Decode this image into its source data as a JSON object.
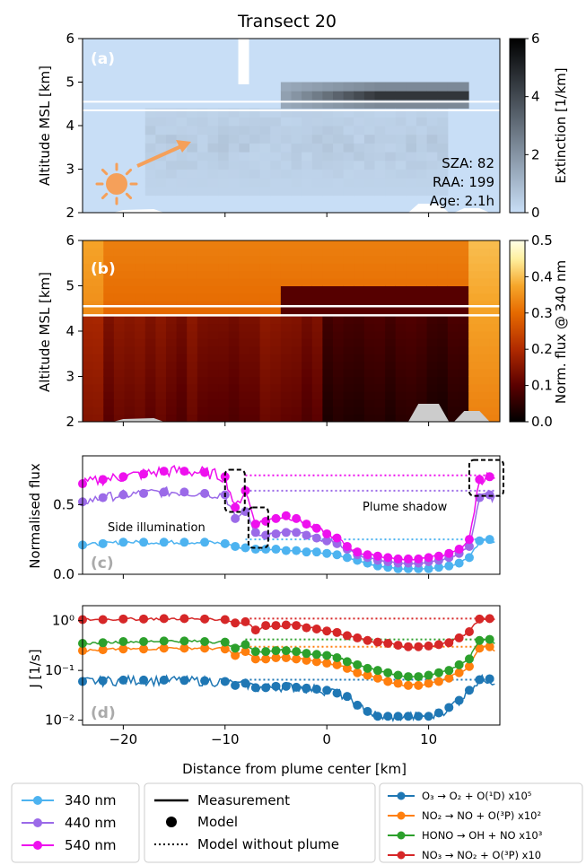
{
  "figure": {
    "title": "Transect 20",
    "xlabel": "Distance from plume center [km]",
    "xticks": [
      "−20",
      "−10",
      "0",
      "10"
    ],
    "xrange": [
      -24,
      17
    ]
  },
  "panel_a": {
    "label": "(a)",
    "ylabel": "Altitude MSL [km]",
    "yticks": [
      "2",
      "3",
      "4",
      "5",
      "6"
    ],
    "colorbar_label": "Extinction [1/km]",
    "colorbar_ticks": [
      "0",
      "2",
      "4",
      "6"
    ],
    "info": [
      "SZA: 82",
      "RAA: 199",
      "Age: 2.1h"
    ],
    "colormap": [
      "#c8def6",
      "#1a1a1a"
    ]
  },
  "panel_b": {
    "label": "(b)",
    "ylabel": "Altitude MSL [km]",
    "yticks": [
      "2",
      "3",
      "4",
      "5",
      "6"
    ],
    "colorbar_label": "Norm. flux @ 340 nm",
    "colorbar_ticks": [
      "0.0",
      "0.1",
      "0.2",
      "0.3",
      "0.4",
      "0.5"
    ],
    "colormap": [
      "#000000",
      "#5a0000",
      "#b02a00",
      "#e66a00",
      "#f6a62a",
      "#fff0a0",
      "#ffffe8"
    ]
  },
  "panel_c": {
    "label": "(c)",
    "ylabel": "Normalised flux",
    "yticks": [
      "0.0",
      "0.5"
    ],
    "annot_side": "Side illumination",
    "annot_shadow": "Plume shadow"
  },
  "panel_d": {
    "label": "(d)",
    "ylabel": "J [1/s]",
    "yticks": [
      "10⁻²",
      "10⁻¹",
      "10⁰"
    ]
  },
  "legend_wavelength": {
    "items": [
      {
        "label": "340 nm",
        "color": "#4db3f0"
      },
      {
        "label": "440 nm",
        "color": "#9b6ae8"
      },
      {
        "label": "540 nm",
        "color": "#ee10ee"
      }
    ]
  },
  "legend_style": {
    "items": [
      "Measurement",
      "Model",
      "Model without plume"
    ]
  },
  "legend_reactions": {
    "items": [
      {
        "label": "O₃ → O₂ + O(¹D) x10⁵",
        "color": "#1f77b4"
      },
      {
        "label": "NO₂ → NO + O(³P) x10²",
        "color": "#ff7f0e"
      },
      {
        "label": "HONO → OH + NO x10³",
        "color": "#2ca02c"
      },
      {
        "label": "NO₃ → NO₂ + O(³P) x10",
        "color": "#d62728"
      }
    ]
  },
  "chart_data": [
    {
      "type": "heatmap",
      "panel": "a",
      "x_range": [
        -24,
        17
      ],
      "y_range": [
        2,
        6
      ],
      "value_range": [
        0,
        6
      ],
      "note": "Extinction field; plume layer near 4.6-4.9 km from about x=-5 to 14 km"
    },
    {
      "type": "heatmap",
      "panel": "b",
      "x_range": [
        -24,
        17
      ],
      "y_range": [
        2,
        6
      ],
      "value_range": [
        0,
        0.5
      ]
    },
    {
      "type": "line",
      "panel": "c",
      "ylim": [
        0,
        0.85
      ],
      "x": [
        -24,
        -22,
        -20,
        -18,
        -16,
        -14,
        -12,
        -10,
        -9,
        -8,
        -7,
        -6,
        -5,
        -4,
        -3,
        -2,
        -1,
        0,
        1,
        2,
        3,
        4,
        5,
        6,
        7,
        8,
        9,
        10,
        11,
        12,
        13,
        14,
        15,
        16
      ],
      "series": [
        {
          "name": "340 nm",
          "model": [
            0.21,
            0.22,
            0.23,
            0.23,
            0.23,
            0.23,
            0.23,
            0.22,
            0.2,
            0.19,
            0.18,
            0.18,
            0.18,
            0.17,
            0.17,
            0.16,
            0.16,
            0.15,
            0.14,
            0.12,
            0.1,
            0.08,
            0.06,
            0.05,
            0.04,
            0.04,
            0.04,
            0.04,
            0.05,
            0.06,
            0.08,
            0.12,
            0.24,
            0.25
          ],
          "no_plume": 0.25
        },
        {
          "name": "440 nm",
          "model": [
            0.52,
            0.55,
            0.57,
            0.58,
            0.59,
            0.59,
            0.58,
            0.57,
            0.4,
            0.45,
            0.3,
            0.28,
            0.29,
            0.3,
            0.3,
            0.28,
            0.26,
            0.24,
            0.22,
            0.18,
            0.14,
            0.12,
            0.1,
            0.09,
            0.08,
            0.08,
            0.08,
            0.09,
            0.1,
            0.12,
            0.15,
            0.2,
            0.55,
            0.57
          ],
          "no_plume": 0.6
        },
        {
          "name": "540 nm",
          "model": [
            0.65,
            0.68,
            0.7,
            0.72,
            0.74,
            0.74,
            0.73,
            0.7,
            0.48,
            0.6,
            0.36,
            0.38,
            0.4,
            0.42,
            0.4,
            0.36,
            0.33,
            0.29,
            0.26,
            0.2,
            0.16,
            0.14,
            0.13,
            0.12,
            0.11,
            0.11,
            0.11,
            0.12,
            0.13,
            0.15,
            0.18,
            0.25,
            0.68,
            0.7
          ],
          "no_plume": 0.71
        }
      ]
    },
    {
      "type": "line",
      "panel": "d",
      "yscale": "log",
      "ylim": [
        0.008,
        2
      ],
      "x": [
        -24,
        -22,
        -20,
        -18,
        -16,
        -14,
        -12,
        -10,
        -9,
        -8,
        -7,
        -6,
        -5,
        -4,
        -3,
        -2,
        -1,
        0,
        1,
        2,
        3,
        4,
        5,
        6,
        7,
        8,
        9,
        10,
        11,
        12,
        13,
        14,
        15,
        16
      ],
      "series": [
        {
          "name": "O₃ → O₂ + O(¹D) x10⁵",
          "model": [
            0.06,
            0.062,
            0.064,
            0.064,
            0.064,
            0.063,
            0.062,
            0.06,
            0.05,
            0.055,
            0.045,
            0.045,
            0.048,
            0.048,
            0.046,
            0.044,
            0.042,
            0.04,
            0.035,
            0.03,
            0.02,
            0.015,
            0.012,
            0.012,
            0.012,
            0.012,
            0.012,
            0.012,
            0.014,
            0.018,
            0.025,
            0.04,
            0.065,
            0.068
          ],
          "no_plume": 0.065
        },
        {
          "name": "NO₂ → NO + O(³P) x10²",
          "model": [
            0.25,
            0.26,
            0.27,
            0.27,
            0.28,
            0.28,
            0.28,
            0.27,
            0.2,
            0.24,
            0.17,
            0.17,
            0.18,
            0.18,
            0.17,
            0.16,
            0.15,
            0.14,
            0.13,
            0.11,
            0.09,
            0.08,
            0.07,
            0.06,
            0.055,
            0.05,
            0.05,
            0.055,
            0.06,
            0.07,
            0.09,
            0.12,
            0.28,
            0.3
          ],
          "no_plume": 0.3
        },
        {
          "name": "HONO → OH + NO x10³",
          "model": [
            0.35,
            0.36,
            0.38,
            0.38,
            0.39,
            0.39,
            0.38,
            0.37,
            0.28,
            0.33,
            0.24,
            0.24,
            0.25,
            0.25,
            0.24,
            0.22,
            0.21,
            0.2,
            0.18,
            0.15,
            0.13,
            0.11,
            0.1,
            0.09,
            0.08,
            0.075,
            0.075,
            0.08,
            0.09,
            0.1,
            0.13,
            0.17,
            0.4,
            0.42
          ],
          "no_plume": 0.42
        },
        {
          "name": "NO₃ → NO₂ + O(³P) x10",
          "model": [
            1.05,
            1.05,
            1.08,
            1.08,
            1.1,
            1.1,
            1.08,
            1.05,
            0.9,
            0.95,
            0.65,
            0.8,
            0.8,
            0.82,
            0.8,
            0.72,
            0.68,
            0.62,
            0.58,
            0.5,
            0.45,
            0.4,
            0.37,
            0.35,
            0.32,
            0.3,
            0.3,
            0.31,
            0.33,
            0.36,
            0.45,
            0.6,
            1.08,
            1.1
          ],
          "no_plume": 1.1
        }
      ]
    }
  ]
}
